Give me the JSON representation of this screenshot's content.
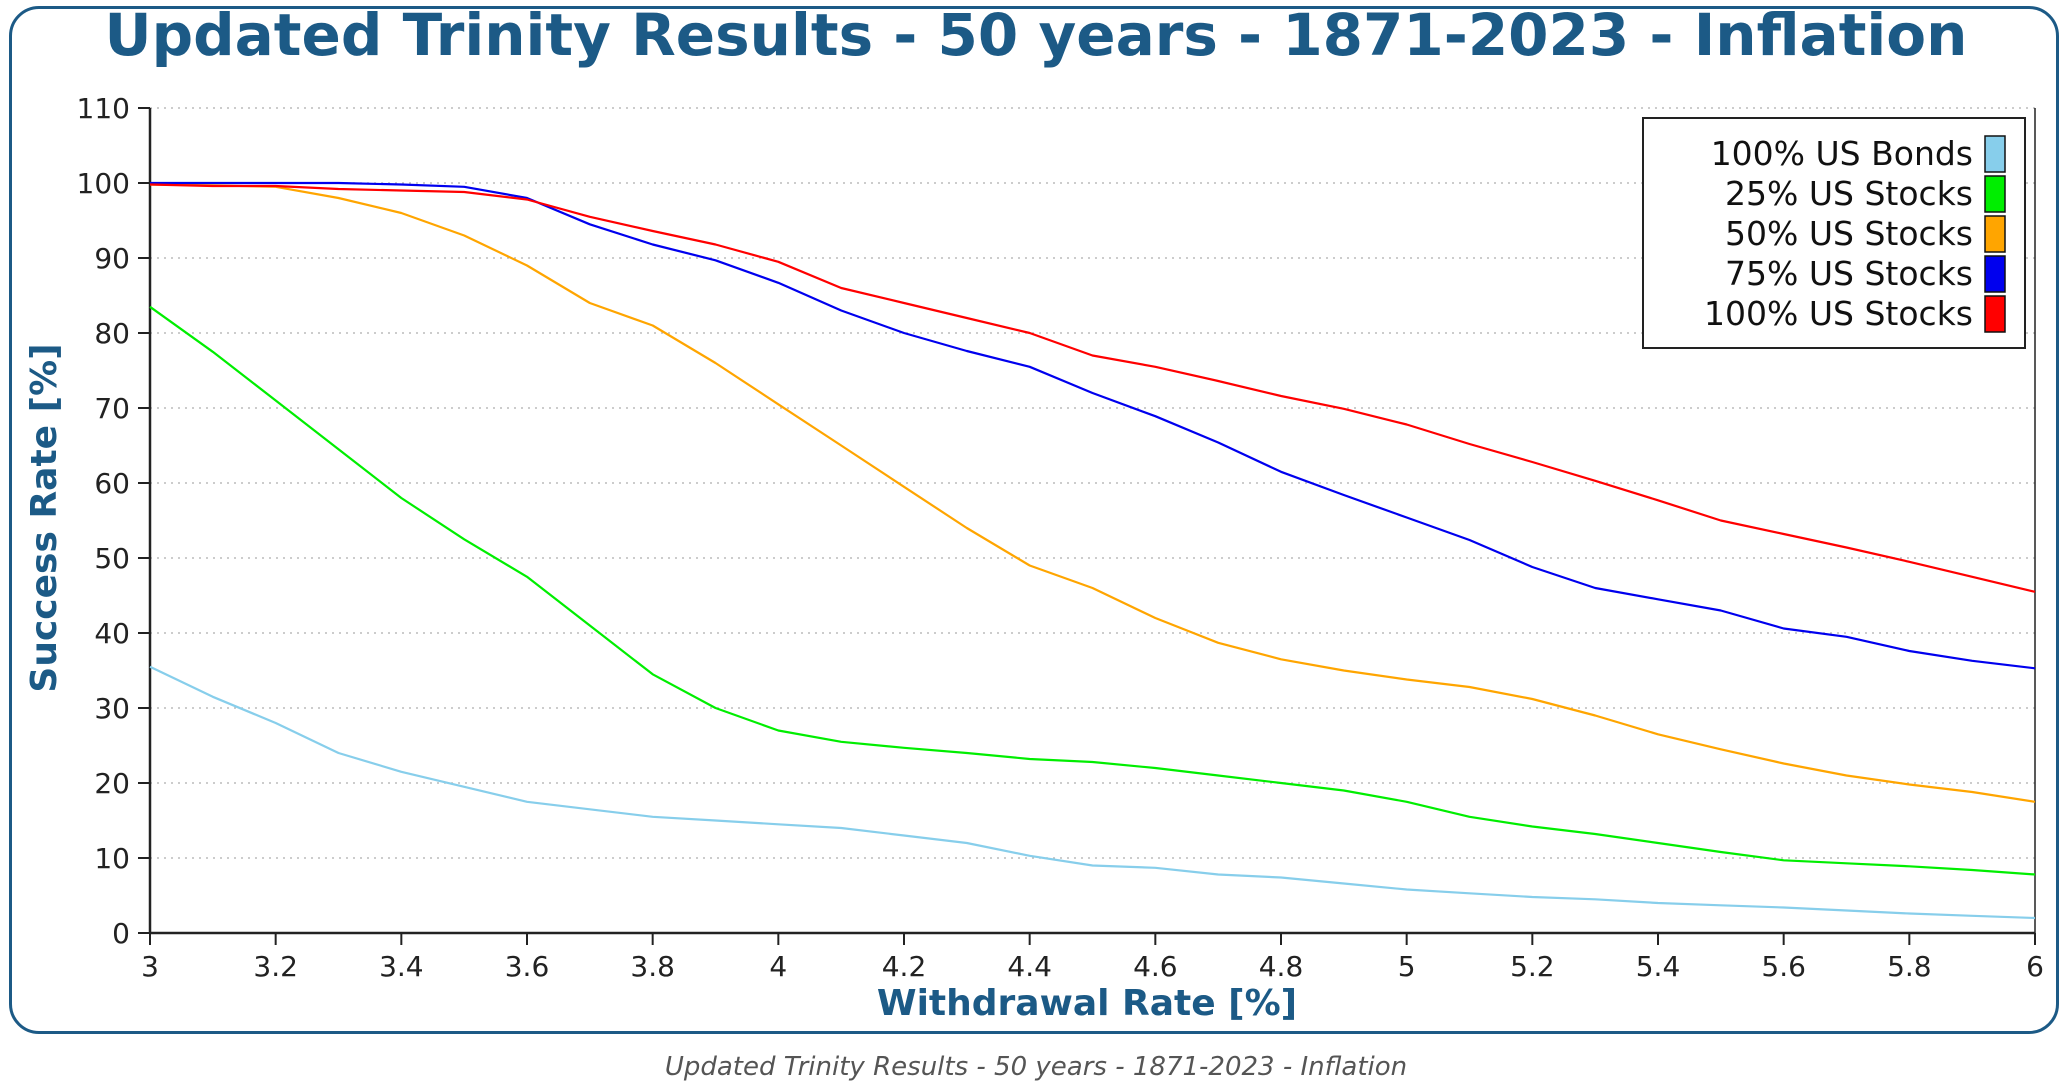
{
  "caption": "Updated Trinity Results - 50 years - 1871-2023 - Inflation",
  "colors": {
    "frame": "#1c5a86",
    "title": "#1c5a86",
    "axis": "#222222",
    "grid": "#bbbbbb"
  },
  "chart_data": {
    "type": "line",
    "title": "Updated Trinity Results - 50 years - 1871-2023 - Inflation",
    "xlabel": "Withdrawal Rate [%]",
    "ylabel": "Success Rate [%]",
    "xlim": [
      3,
      6
    ],
    "ylim": [
      0,
      110
    ],
    "xticks": [
      "3",
      "3.2",
      "3.4",
      "3.6",
      "3.8",
      "4",
      "4.2",
      "4.4",
      "4.6",
      "4.8",
      "5",
      "5.2",
      "5.4",
      "5.6",
      "5.8",
      "6"
    ],
    "yticks": [
      "0",
      "10",
      "20",
      "30",
      "40",
      "50",
      "60",
      "70",
      "80",
      "90",
      "100",
      "110"
    ],
    "grid": "horizontal-dotted",
    "legend_position": "top-right",
    "x": [
      3.0,
      3.1,
      3.2,
      3.3,
      3.4,
      3.5,
      3.6,
      3.7,
      3.8,
      3.9,
      4.0,
      4.1,
      4.2,
      4.3,
      4.4,
      4.5,
      4.6,
      4.7,
      4.8,
      4.9,
      5.0,
      5.1,
      5.2,
      5.3,
      5.4,
      5.5,
      5.6,
      5.7,
      5.8,
      5.9,
      6.0
    ],
    "series": [
      {
        "name": "100% US Bonds",
        "color": "#87ceeb",
        "values": [
          35.5,
          31.5,
          28,
          24,
          21.5,
          19.5,
          17.5,
          16.5,
          15.5,
          15,
          14.5,
          14,
          13,
          12,
          10.3,
          9,
          8.7,
          7.8,
          7.4,
          6.6,
          5.8,
          5.3,
          4.8,
          4.5,
          4,
          3.7,
          3.4,
          3,
          2.6,
          2.3,
          2
        ]
      },
      {
        "name": "25% US Stocks",
        "color": "#00ee00",
        "values": [
          83.5,
          77.5,
          71,
          64.5,
          58,
          52.5,
          47.5,
          41,
          34.5,
          30,
          27,
          25.5,
          24.7,
          24,
          23.2,
          22.8,
          22,
          21,
          20,
          19,
          17.5,
          15.5,
          14.2,
          13.2,
          12,
          10.8,
          9.7,
          9.3,
          8.9,
          8.4,
          7.8
        ]
      },
      {
        "name": "50% US Stocks",
        "color": "#ffa500",
        "values": [
          99.8,
          99.7,
          99.5,
          98,
          96,
          93,
          89,
          84,
          81,
          76,
          70.5,
          65,
          59.5,
          54,
          49,
          46,
          42,
          38.7,
          36.5,
          35,
          33.8,
          32.8,
          31.2,
          29,
          26.5,
          24.5,
          22.6,
          21,
          19.8,
          18.8,
          17.5
        ]
      },
      {
        "name": "75% US Stocks",
        "color": "#0000ee",
        "values": [
          100,
          100,
          100,
          100,
          99.8,
          99.5,
          98,
          94.5,
          91.8,
          89.7,
          86.7,
          83,
          80,
          77.6,
          75.5,
          72,
          68.9,
          65.4,
          61.5,
          58.4,
          55.4,
          52.4,
          48.8,
          46,
          44.5,
          43,
          40.6,
          39.5,
          37.6,
          36.3,
          35.3
        ]
      },
      {
        "name": "100% US Stocks",
        "color": "#ff0000",
        "values": [
          99.8,
          99.6,
          99.6,
          99.2,
          99,
          98.8,
          97.8,
          95.5,
          93.6,
          91.8,
          89.5,
          86,
          84,
          82,
          80,
          77,
          75.5,
          73.6,
          71.6,
          69.9,
          67.8,
          65.2,
          62.8,
          60.3,
          57.7,
          55,
          53.2,
          51.4,
          49.5,
          47.5,
          45.5
        ]
      }
    ]
  }
}
